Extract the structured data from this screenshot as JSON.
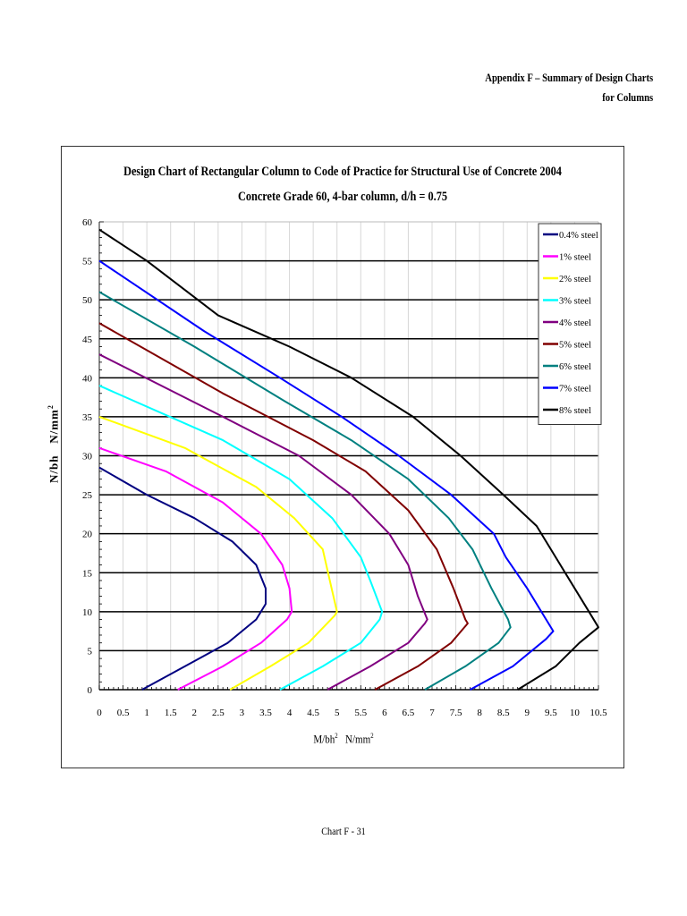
{
  "header": {
    "line1": "Appendix  F  –  Summary  of  Design  Charts",
    "line2": "for Columns"
  },
  "footer": {
    "page_label": "Chart F - 31"
  },
  "chart_data": {
    "type": "line",
    "title": "Design Chart of Rectangular Column to Code of Practice for Structural Use of Concrete 2004",
    "subtitle": "Concrete Grade 60,  4-bar column,  d/h = 0.75",
    "xlabel": "M/bh² N/mm²",
    "ylabel": "N/bh  N/mm²",
    "xlim": [
      0,
      10.5
    ],
    "ylim": [
      0,
      60
    ],
    "x_ticks": [
      "0",
      "0.5",
      "1",
      "1.5",
      "2",
      "2.5",
      "3",
      "3.5",
      "4",
      "4.5",
      "5",
      "5.5",
      "6",
      "6.5",
      "7",
      "7.5",
      "8",
      "8.5",
      "9",
      "9.5",
      "10",
      "10.5"
    ],
    "y_ticks": [
      "0",
      "5",
      "10",
      "15",
      "20",
      "25",
      "30",
      "35",
      "40",
      "45",
      "50",
      "55",
      "60"
    ],
    "grid": {
      "horizontal_major": true,
      "vertical_light": true
    },
    "legend_position": "upper right",
    "series": [
      {
        "name": "0.4% steel",
        "color": "#000080",
        "points": [
          [
            0.9,
            0
          ],
          [
            1.8,
            3
          ],
          [
            2.7,
            6
          ],
          [
            3.3,
            9
          ],
          [
            3.5,
            11
          ],
          [
            3.5,
            13
          ],
          [
            3.3,
            16
          ],
          [
            2.8,
            19
          ],
          [
            2.0,
            22
          ],
          [
            1.0,
            25
          ],
          [
            0,
            28.5
          ]
        ]
      },
      {
        "name": "1% steel",
        "color": "#FF00FF",
        "points": [
          [
            1.65,
            0
          ],
          [
            2.6,
            3
          ],
          [
            3.4,
            6
          ],
          [
            3.95,
            9
          ],
          [
            4.05,
            10
          ],
          [
            4.0,
            13
          ],
          [
            3.85,
            16
          ],
          [
            3.4,
            20
          ],
          [
            2.6,
            24
          ],
          [
            1.4,
            28
          ],
          [
            0,
            31
          ]
        ]
      },
      {
        "name": "2% steel",
        "color": "#FFFF00",
        "points": [
          [
            2.75,
            0
          ],
          [
            3.6,
            3
          ],
          [
            4.4,
            6
          ],
          [
            4.95,
            9.5
          ],
          [
            5.0,
            10
          ],
          [
            4.85,
            14
          ],
          [
            4.7,
            18
          ],
          [
            4.1,
            22
          ],
          [
            3.3,
            26
          ],
          [
            1.8,
            31
          ],
          [
            0,
            35
          ]
        ]
      },
      {
        "name": "3% steel",
        "color": "#00FFFF",
        "points": [
          [
            3.8,
            0
          ],
          [
            4.7,
            3
          ],
          [
            5.5,
            6
          ],
          [
            5.9,
            9
          ],
          [
            5.95,
            10
          ],
          [
            5.7,
            14
          ],
          [
            5.5,
            17
          ],
          [
            4.9,
            22
          ],
          [
            4.0,
            27
          ],
          [
            2.6,
            32
          ],
          [
            0,
            39
          ]
        ]
      },
      {
        "name": "4% steel",
        "color": "#800080",
        "points": [
          [
            4.8,
            0
          ],
          [
            5.7,
            3
          ],
          [
            6.5,
            6
          ],
          [
            6.85,
            8.5
          ],
          [
            6.9,
            9
          ],
          [
            6.7,
            12
          ],
          [
            6.5,
            16
          ],
          [
            6.1,
            20
          ],
          [
            5.3,
            25
          ],
          [
            4.2,
            30
          ],
          [
            2.6,
            35
          ],
          [
            0,
            43
          ]
        ]
      },
      {
        "name": "5% steel",
        "color": "#800000",
        "points": [
          [
            5.8,
            0
          ],
          [
            6.7,
            3
          ],
          [
            7.4,
            6
          ],
          [
            7.75,
            8.5
          ],
          [
            7.7,
            9
          ],
          [
            7.45,
            13
          ],
          [
            7.1,
            18
          ],
          [
            6.5,
            23
          ],
          [
            5.6,
            28
          ],
          [
            4.5,
            32
          ],
          [
            2.6,
            38
          ],
          [
            0,
            47
          ]
        ]
      },
      {
        "name": "6% steel",
        "color": "#008080",
        "points": [
          [
            6.85,
            0
          ],
          [
            7.7,
            3
          ],
          [
            8.4,
            6
          ],
          [
            8.65,
            8
          ],
          [
            8.6,
            9
          ],
          [
            8.25,
            13
          ],
          [
            7.85,
            18
          ],
          [
            7.35,
            22
          ],
          [
            6.5,
            27
          ],
          [
            5.3,
            32
          ],
          [
            3.9,
            37
          ],
          [
            2.0,
            44
          ],
          [
            0,
            51
          ]
        ]
      },
      {
        "name": "7% steel",
        "color": "#0000FF",
        "points": [
          [
            7.8,
            0
          ],
          [
            8.7,
            3
          ],
          [
            9.4,
            6.5
          ],
          [
            9.55,
            7.5
          ],
          [
            9.4,
            9
          ],
          [
            9.0,
            13
          ],
          [
            8.55,
            17
          ],
          [
            8.3,
            20
          ],
          [
            7.4,
            25
          ],
          [
            6.3,
            30
          ],
          [
            5.1,
            35
          ],
          [
            3.8,
            40
          ],
          [
            2.2,
            46
          ],
          [
            0,
            55
          ]
        ]
      },
      {
        "name": "8% steel",
        "color": "#000000",
        "points": [
          [
            8.8,
            0
          ],
          [
            9.6,
            3
          ],
          [
            10.1,
            6
          ],
          [
            10.5,
            8
          ],
          [
            10.3,
            10
          ],
          [
            9.8,
            15
          ],
          [
            9.4,
            19
          ],
          [
            9.2,
            21
          ],
          [
            8.5,
            25
          ],
          [
            7.6,
            30
          ],
          [
            6.6,
            35
          ],
          [
            5.3,
            40
          ],
          [
            4.0,
            44
          ],
          [
            2.5,
            48
          ],
          [
            1.0,
            55
          ],
          [
            0,
            59
          ]
        ]
      }
    ]
  }
}
